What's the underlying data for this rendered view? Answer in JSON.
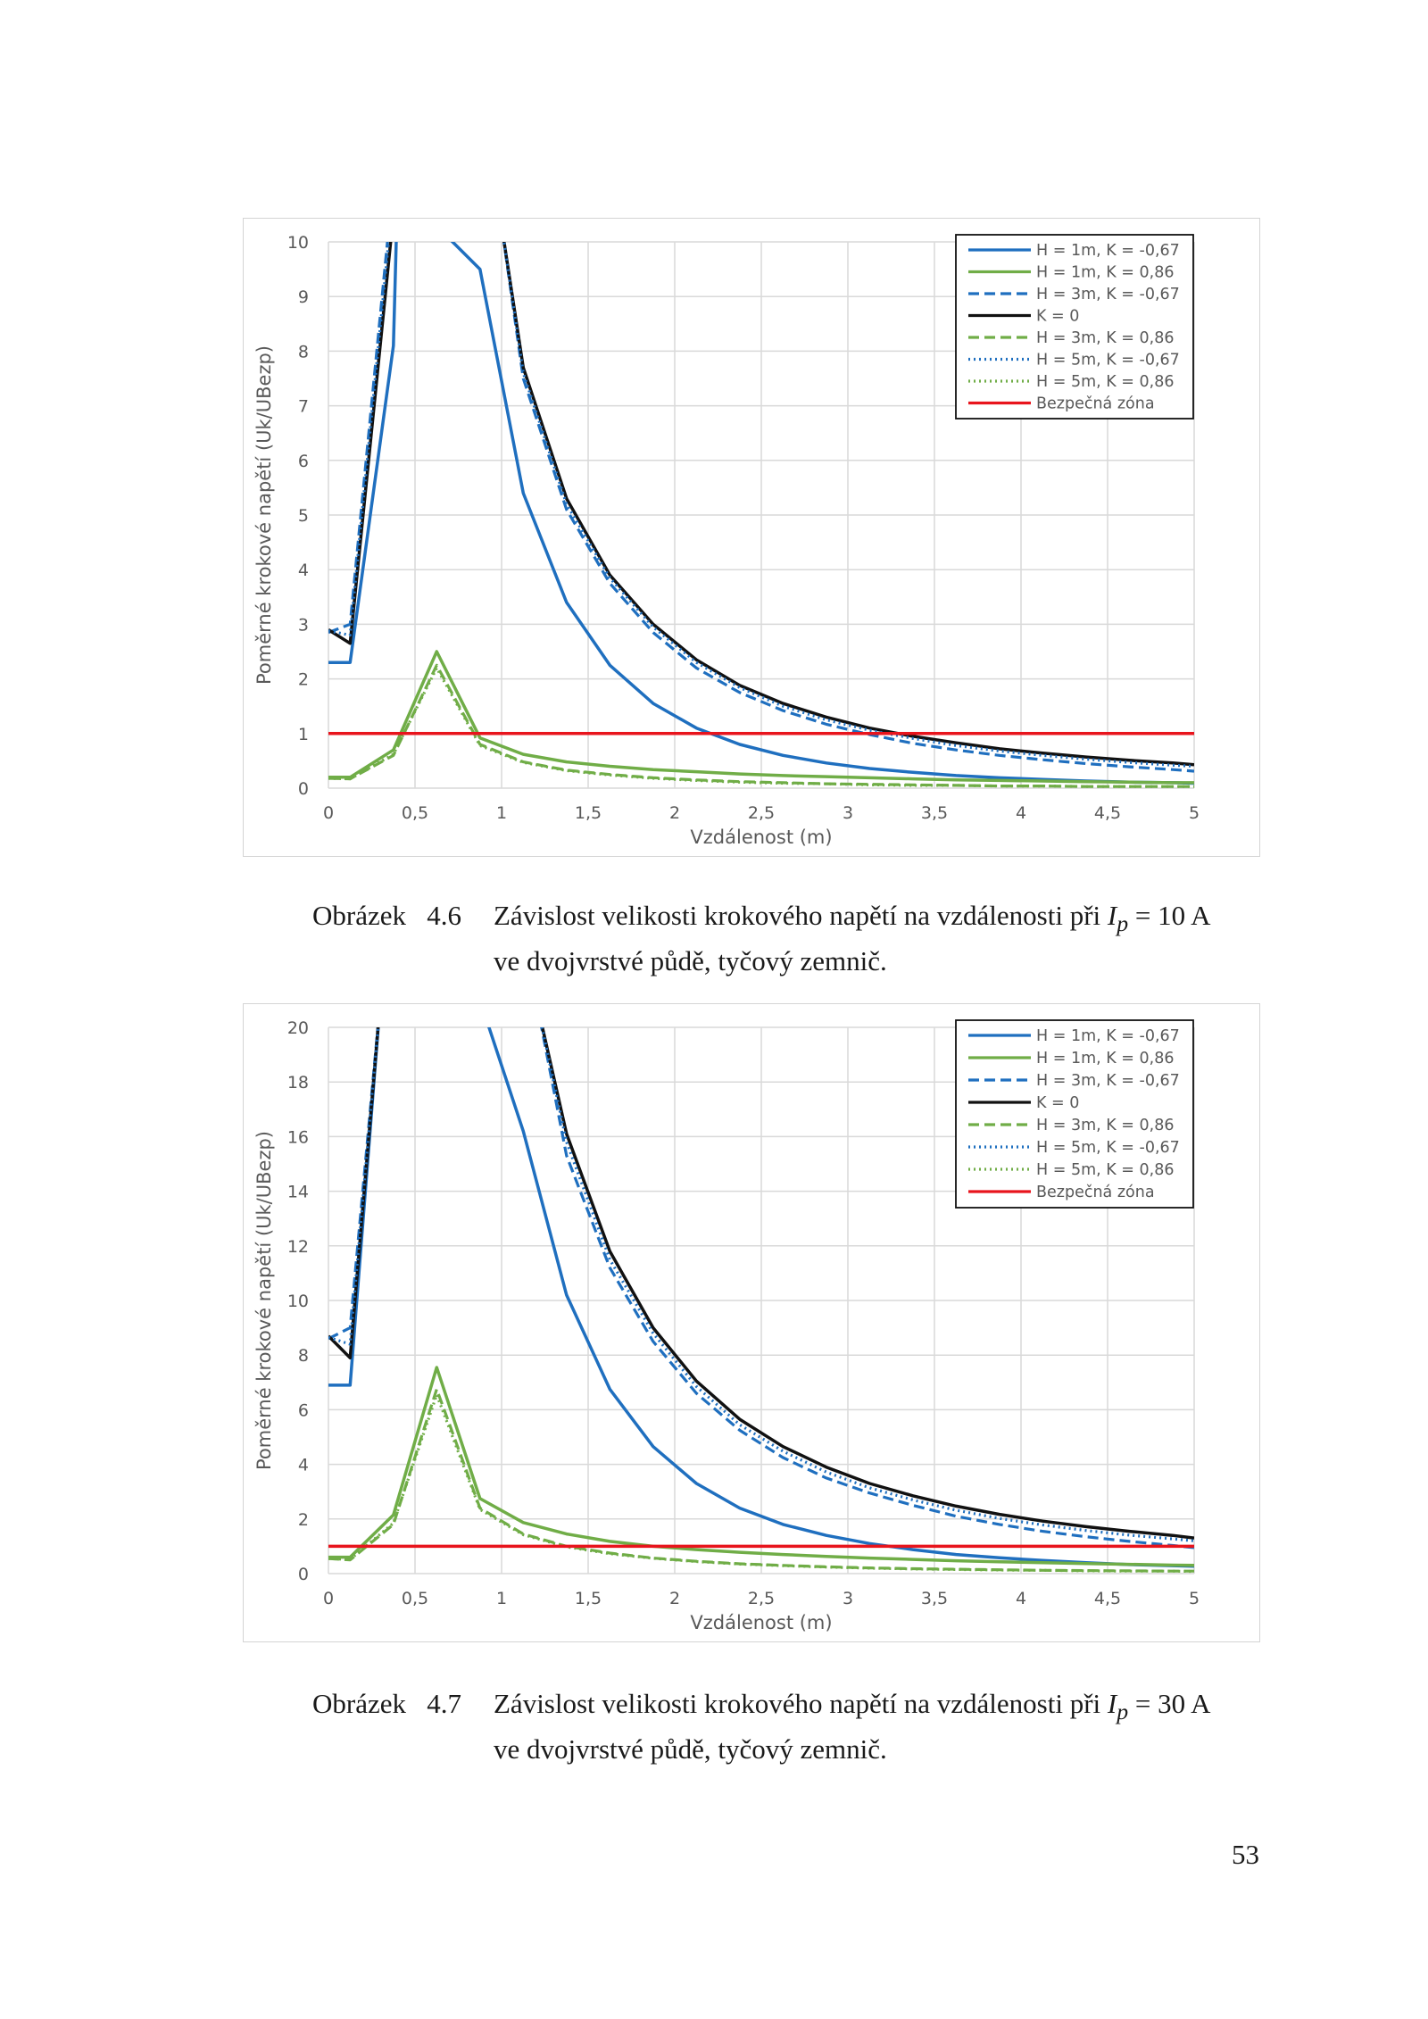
{
  "chart_data": [
    {
      "type": "line",
      "title": "",
      "xlabel": "Vzdálenost (m)",
      "ylabel": "Poměrné krokové napětí (Uk/UBezp)",
      "xlim": [
        0,
        5
      ],
      "ylim": [
        0,
        10
      ],
      "xticks": [
        0,
        0.5,
        1,
        1.5,
        2,
        2.5,
        3,
        3.5,
        4,
        4.5,
        5
      ],
      "xtick_labels": [
        "0",
        "0,5",
        "1",
        "1,5",
        "2",
        "2,5",
        "3",
        "3,5",
        "4",
        "4,5",
        "5"
      ],
      "yticks": [
        0,
        1,
        2,
        3,
        4,
        5,
        6,
        7,
        8,
        9,
        10
      ],
      "ytick_labels": [
        "0",
        "1",
        "2",
        "3",
        "4",
        "5",
        "6",
        "7",
        "8",
        "9",
        "10"
      ],
      "grid": true,
      "legend_position": "top-right",
      "series": [
        {
          "name": "H = 1m, K = -0,67",
          "color": "#1f6fbf",
          "style": "solid",
          "x": [
            0,
            0.125,
            0.375,
            0.4,
            0.875,
            1.125,
            1.375,
            1.625,
            1.875,
            2.125,
            2.375,
            2.625,
            2.875,
            3.125,
            3.375,
            3.625,
            3.875,
            4.125,
            4.375,
            4.625,
            4.875,
            5
          ],
          "y": [
            2.3,
            2.3,
            8.1,
            11,
            9.5,
            5.4,
            3.4,
            2.25,
            1.55,
            1.1,
            0.8,
            0.6,
            0.46,
            0.36,
            0.29,
            0.23,
            0.19,
            0.16,
            0.13,
            0.11,
            0.1,
            0.09
          ]
        },
        {
          "name": "H = 1m, K = 0,86",
          "color": "#70ad47",
          "style": "solid",
          "x": [
            0,
            0.125,
            0.375,
            0.625,
            0.875,
            1.125,
            1.375,
            1.625,
            1.875,
            2.125,
            2.375,
            2.625,
            2.875,
            3.125,
            3.375,
            3.625,
            3.875,
            4.125,
            4.375,
            4.625,
            4.875,
            5
          ],
          "y": [
            0.2,
            0.2,
            0.7,
            2.5,
            0.92,
            0.62,
            0.48,
            0.4,
            0.34,
            0.3,
            0.26,
            0.23,
            0.21,
            0.19,
            0.17,
            0.15,
            0.14,
            0.13,
            0.12,
            0.11,
            0.1,
            0.1
          ]
        },
        {
          "name": "H = 3m, K = -0,67",
          "color": "#1f6fbf",
          "style": "dashed",
          "x": [
            0,
            0.125,
            0.35,
            1.0,
            1.125,
            1.375,
            1.625,
            1.875,
            2.125,
            2.375,
            2.625,
            2.875,
            3.125,
            3.375,
            3.625,
            3.875,
            4.125,
            4.375,
            4.625,
            4.875,
            5
          ],
          "y": [
            2.85,
            3.0,
            10.3,
            10.3,
            7.5,
            5.1,
            3.75,
            2.85,
            2.2,
            1.75,
            1.42,
            1.17,
            0.98,
            0.82,
            0.7,
            0.6,
            0.52,
            0.45,
            0.39,
            0.34,
            0.31
          ]
        },
        {
          "name": "K = 0",
          "color": "#111111",
          "style": "solid",
          "x": [
            0,
            0.125,
            0.375,
            1.0,
            1.125,
            1.375,
            1.625,
            1.875,
            2.125,
            2.375,
            2.625,
            2.875,
            3.125,
            3.375,
            3.625,
            3.875,
            4.125,
            4.375,
            4.625,
            4.875,
            5
          ],
          "y": [
            2.9,
            2.65,
            10.5,
            10.3,
            7.7,
            5.3,
            3.9,
            3.0,
            2.35,
            1.88,
            1.55,
            1.3,
            1.1,
            0.95,
            0.83,
            0.72,
            0.64,
            0.57,
            0.51,
            0.46,
            0.43
          ]
        },
        {
          "name": "H = 3m, K = 0,86",
          "color": "#70ad47",
          "style": "dashed",
          "x": [
            0,
            0.125,
            0.375,
            0.625,
            0.875,
            1.125,
            1.375,
            1.625,
            1.875,
            2.125,
            2.375,
            2.625,
            2.875,
            3.125,
            3.375,
            3.625,
            3.875,
            4.125,
            4.375,
            4.625,
            4.875,
            5
          ],
          "y": [
            0.18,
            0.17,
            0.6,
            2.25,
            0.8,
            0.48,
            0.33,
            0.25,
            0.19,
            0.15,
            0.12,
            0.1,
            0.08,
            0.07,
            0.06,
            0.05,
            0.04,
            0.04,
            0.03,
            0.03,
            0.03,
            0.03
          ]
        },
        {
          "name": "H = 5m, K = -0,67",
          "color": "#1f6fbf",
          "style": "dotted",
          "x": [
            0,
            0.125,
            0.36,
            1.0,
            1.125,
            1.375,
            1.625,
            1.875,
            2.125,
            2.375,
            2.625,
            2.875,
            3.125,
            3.375,
            3.625,
            3.875,
            4.125,
            4.375,
            4.625,
            4.875,
            5
          ],
          "y": [
            2.88,
            2.8,
            10.4,
            10.3,
            7.6,
            5.2,
            3.85,
            2.95,
            2.3,
            1.84,
            1.5,
            1.25,
            1.06,
            0.91,
            0.78,
            0.68,
            0.6,
            0.53,
            0.47,
            0.42,
            0.4
          ]
        },
        {
          "name": "H = 5m, K = 0,86",
          "color": "#70ad47",
          "style": "dotted",
          "x": [
            0,
            0.125,
            0.375,
            0.625,
            0.875,
            1.125,
            1.375,
            1.625,
            1.875,
            2.125,
            2.375,
            2.625,
            2.875,
            3.125,
            3.375,
            3.625,
            3.875,
            4.125,
            4.375,
            4.625,
            4.875,
            5
          ],
          "y": [
            0.18,
            0.17,
            0.62,
            2.2,
            0.78,
            0.47,
            0.32,
            0.24,
            0.18,
            0.14,
            0.11,
            0.09,
            0.08,
            0.06,
            0.05,
            0.05,
            0.04,
            0.04,
            0.03,
            0.03,
            0.03,
            0.03
          ]
        },
        {
          "name": "Bezpečná zóna",
          "color": "#e8141c",
          "style": "solid",
          "x": [
            0,
            5
          ],
          "y": [
            1,
            1
          ]
        }
      ]
    },
    {
      "type": "line",
      "title": "",
      "xlabel": "Vzdálenost (m)",
      "ylabel": "Poměrné krokové napětí (Uk/UBezp)",
      "xlim": [
        0,
        5
      ],
      "ylim": [
        0,
        20
      ],
      "xticks": [
        0,
        0.5,
        1,
        1.5,
        2,
        2.5,
        3,
        3.5,
        4,
        4.5,
        5
      ],
      "xtick_labels": [
        "0",
        "0,5",
        "1",
        "1,5",
        "2",
        "2,5",
        "3",
        "3,5",
        "4",
        "4,5",
        "5"
      ],
      "yticks": [
        0,
        2,
        4,
        6,
        8,
        10,
        12,
        14,
        16,
        18,
        20
      ],
      "ytick_labels": [
        "0",
        "2",
        "4",
        "6",
        "8",
        "10",
        "12",
        "14",
        "16",
        "18",
        "20"
      ],
      "grid": true,
      "legend_position": "top-right",
      "series": [
        {
          "name": "H = 1m, K = -0,67",
          "color": "#1f6fbf",
          "style": "solid",
          "x": [
            0,
            0.125,
            0.3,
            0.875,
            1.125,
            1.375,
            1.625,
            1.875,
            2.125,
            2.375,
            2.625,
            2.875,
            3.125,
            3.375,
            3.625,
            3.875,
            4.125,
            4.375,
            4.625,
            4.875,
            5
          ],
          "y": [
            6.9,
            6.9,
            21,
            21,
            16.2,
            10.2,
            6.75,
            4.65,
            3.3,
            2.4,
            1.8,
            1.4,
            1.1,
            0.88,
            0.7,
            0.58,
            0.48,
            0.4,
            0.33,
            0.29,
            0.27
          ]
        },
        {
          "name": "H = 1m, K = 0,86",
          "color": "#70ad47",
          "style": "solid",
          "x": [
            0,
            0.125,
            0.375,
            0.625,
            0.875,
            1.125,
            1.375,
            1.625,
            1.875,
            2.125,
            2.375,
            2.625,
            2.875,
            3.125,
            3.375,
            3.625,
            3.875,
            4.125,
            4.375,
            4.625,
            4.875,
            5
          ],
          "y": [
            0.6,
            0.6,
            2.15,
            7.55,
            2.75,
            1.87,
            1.45,
            1.18,
            1.0,
            0.88,
            0.78,
            0.7,
            0.63,
            0.57,
            0.52,
            0.47,
            0.43,
            0.4,
            0.37,
            0.34,
            0.31,
            0.3
          ]
        },
        {
          "name": "H = 3m, K = -0,67",
          "color": "#1f6fbf",
          "style": "dashed",
          "x": [
            0,
            0.125,
            0.3,
            1.2,
            1.375,
            1.625,
            1.875,
            2.125,
            2.375,
            2.625,
            2.875,
            3.125,
            3.375,
            3.625,
            3.875,
            4.125,
            4.375,
            4.625,
            4.875,
            5
          ],
          "y": [
            8.6,
            9.0,
            21,
            21,
            15.3,
            11.2,
            8.5,
            6.6,
            5.25,
            4.25,
            3.5,
            2.95,
            2.5,
            2.1,
            1.8,
            1.55,
            1.35,
            1.18,
            1.03,
            0.95
          ]
        },
        {
          "name": "K = 0",
          "color": "#111111",
          "style": "solid",
          "x": [
            0,
            0.125,
            0.3,
            1.2,
            1.375,
            1.625,
            1.875,
            2.125,
            2.375,
            2.625,
            2.875,
            3.125,
            3.375,
            3.625,
            3.875,
            4.125,
            4.375,
            4.625,
            4.875,
            5
          ],
          "y": [
            8.7,
            7.9,
            21,
            21,
            16.1,
            11.8,
            9.0,
            7.05,
            5.65,
            4.65,
            3.9,
            3.3,
            2.85,
            2.47,
            2.17,
            1.92,
            1.72,
            1.55,
            1.4,
            1.3
          ]
        },
        {
          "name": "H = 3m, K = 0,86",
          "color": "#70ad47",
          "style": "dashed",
          "x": [
            0,
            0.125,
            0.375,
            0.625,
            0.875,
            1.125,
            1.375,
            1.625,
            1.875,
            2.125,
            2.375,
            2.625,
            2.875,
            3.125,
            3.375,
            3.625,
            3.875,
            4.125,
            4.375,
            4.625,
            4.875,
            5
          ],
          "y": [
            0.55,
            0.5,
            1.8,
            6.75,
            2.4,
            1.45,
            1.0,
            0.75,
            0.57,
            0.45,
            0.36,
            0.3,
            0.25,
            0.21,
            0.18,
            0.16,
            0.14,
            0.12,
            0.11,
            0.1,
            0.09,
            0.09
          ]
        },
        {
          "name": "H = 5m, K = -0,67",
          "color": "#1f6fbf",
          "style": "dotted",
          "x": [
            0,
            0.125,
            0.3,
            1.2,
            1.375,
            1.625,
            1.875,
            2.125,
            2.375,
            2.625,
            2.875,
            3.125,
            3.375,
            3.625,
            3.875,
            4.125,
            4.375,
            4.625,
            4.875,
            5
          ],
          "y": [
            8.65,
            8.4,
            21,
            21,
            15.8,
            11.5,
            8.8,
            6.85,
            5.45,
            4.48,
            3.72,
            3.14,
            2.7,
            2.32,
            2.02,
            1.78,
            1.58,
            1.41,
            1.27,
            1.2
          ]
        },
        {
          "name": "H = 5m, K = 0,86",
          "color": "#70ad47",
          "style": "dotted",
          "x": [
            0,
            0.125,
            0.375,
            0.625,
            0.875,
            1.125,
            1.375,
            1.625,
            1.875,
            2.125,
            2.375,
            2.625,
            2.875,
            3.125,
            3.375,
            3.625,
            3.875,
            4.125,
            4.375,
            4.625,
            4.875,
            5
          ],
          "y": [
            0.55,
            0.52,
            1.85,
            6.55,
            2.35,
            1.42,
            0.98,
            0.73,
            0.56,
            0.44,
            0.35,
            0.29,
            0.24,
            0.2,
            0.17,
            0.15,
            0.13,
            0.12,
            0.1,
            0.09,
            0.09,
            0.08
          ]
        },
        {
          "name": "Bezpečná zóna",
          "color": "#e8141c",
          "style": "solid",
          "x": [
            0,
            5
          ],
          "y": [
            1,
            1
          ]
        }
      ]
    }
  ],
  "captions": [
    {
      "label": "Obrázek",
      "number": "4.6",
      "text_before": "Závislost velikosti krokového napětí na vzdálenosti při ",
      "var": "I",
      "sub": "p",
      "text_after": " = 10 A ve dvojvrstvé půdě, tyčový zemnič."
    },
    {
      "label": "Obrázek",
      "number": "4.7",
      "text_before": "Závislost velikosti krokového napětí na vzdálenosti při ",
      "var": "I",
      "sub": "p",
      "text_after": " = 30 A ve dvojvrstvé půdě, tyčový zemnič."
    }
  ],
  "page_number": "53"
}
